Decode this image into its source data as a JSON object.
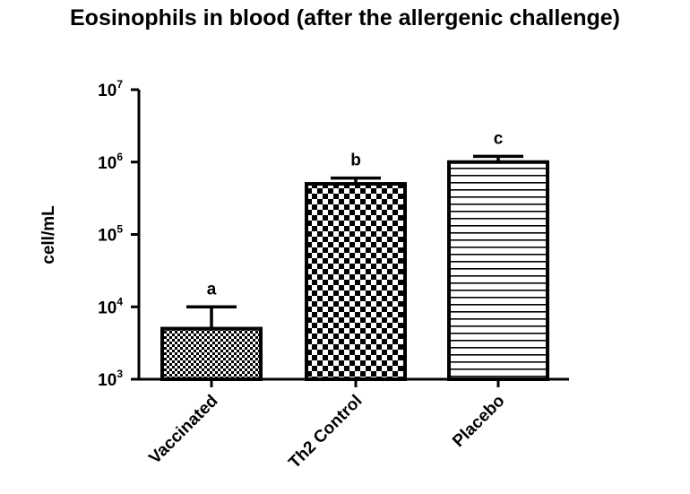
{
  "chart_data": {
    "type": "bar",
    "title": "Eosinophils in blood (after the allergenic challenge)",
    "xlabel": "",
    "ylabel": "cell/mL",
    "yscale": "log",
    "ylim": [
      1000,
      10000000
    ],
    "y_ticks": [
      {
        "base": "10",
        "exp": "3",
        "value": 1000
      },
      {
        "base": "10",
        "exp": "4",
        "value": 10000
      },
      {
        "base": "10",
        "exp": "5",
        "value": 100000
      },
      {
        "base": "10",
        "exp": "6",
        "value": 1000000
      },
      {
        "base": "10",
        "exp": "7",
        "value": 10000000
      }
    ],
    "categories": [
      "Vaccinated",
      "Th2 Control",
      "Placebo"
    ],
    "values": [
      5000,
      500000,
      1000000
    ],
    "error_upper": [
      10000,
      600000,
      1200000
    ],
    "significance_letters": [
      "a",
      "b",
      "c"
    ],
    "bar_patterns": [
      "fine-checker",
      "checker",
      "horizontal-lines"
    ],
    "grid": false,
    "legend": "none",
    "colors": {
      "bar_stroke": "#000000",
      "fill": "#ffffff"
    }
  }
}
